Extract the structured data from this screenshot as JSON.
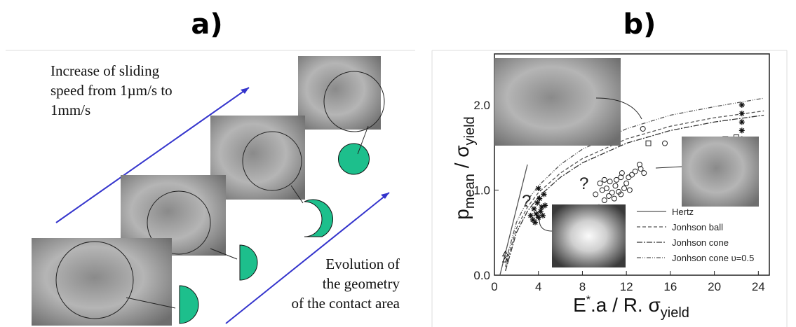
{
  "panel_a": {
    "label": "a)",
    "text_speed": [
      "Increase of sliding",
      "speed from 1µm/s to",
      "1mm/s"
    ],
    "text_geometry": [
      "Evolution of",
      "the geometry",
      "of the contact area"
    ]
  },
  "panel_b": {
    "label": "b)"
  },
  "chart_data": {
    "type": "scatter",
    "x_label": [
      "E",
      "*",
      ".a / R. σ",
      "yield"
    ],
    "y_label": [
      "p",
      "mean",
      " / σ",
      "yield"
    ],
    "annotations": [
      "?",
      "?"
    ],
    "xlim": [
      0,
      25
    ],
    "ylim": [
      0,
      2.6
    ],
    "xticks": [
      0,
      4,
      8,
      12,
      16,
      20,
      24
    ],
    "yticks": [
      {
        "value": 0,
        "label": "0.0"
      },
      {
        "value": 1,
        "label": "1.0"
      },
      {
        "value": 2,
        "label": "2.0"
      }
    ],
    "series": [
      {
        "name": "Hertz",
        "color": "#555555",
        "marker": "line",
        "dash": "1 0",
        "x": [
          0.5,
          3
        ],
        "values": [
          0,
          1.3
        ]
      },
      {
        "name": "Jonhson ball",
        "color": "#555555",
        "marker": "line",
        "dash": "5 3",
        "x": [
          1,
          2,
          3,
          4,
          6,
          8,
          12,
          16,
          20,
          24.5
        ],
        "values": [
          0.1,
          0.55,
          0.8,
          0.97,
          1.2,
          1.37,
          1.6,
          1.75,
          1.85,
          1.93
        ]
      },
      {
        "name": "Jonhson cone",
        "color": "#333333",
        "marker": "line",
        "dash": "8 2 2 2",
        "x": [
          1,
          2,
          3,
          4,
          6,
          8,
          12,
          16,
          20,
          24.5
        ],
        "values": [
          0.05,
          0.5,
          0.75,
          0.92,
          1.15,
          1.32,
          1.55,
          1.7,
          1.8,
          1.88
        ]
      },
      {
        "name": "Jonhson cone υ=0.5",
        "color": "#555555",
        "marker": "line",
        "dash": "6 2 1 2 1 2",
        "x": [
          1,
          2,
          3,
          4,
          6,
          8,
          12,
          16,
          20,
          24.5
        ],
        "values": [
          0.15,
          0.62,
          0.88,
          1.05,
          1.3,
          1.48,
          1.72,
          1.88,
          1.98,
          2.08
        ]
      },
      {
        "color": "#222222",
        "marker": "circle",
        "x": [
          9.2,
          9.5,
          9.8,
          10,
          10.2,
          10.4,
          10.5,
          10.7,
          10.9,
          11,
          11.1,
          11.3,
          11.5,
          11.6,
          11.8,
          12,
          12.2,
          12.5,
          12.8,
          13.2,
          13.5,
          13.6,
          15.5,
          18,
          10,
          11.5,
          12.3,
          9.6,
          13.3
        ],
        "values": [
          0.95,
          0.8,
          1.0,
          0.88,
          1.02,
          0.93,
          1.1,
          0.97,
          0.9,
          1.05,
          1.12,
          0.98,
          1.15,
          1.2,
          1.02,
          1.08,
          1.15,
          1.18,
          1.22,
          1.3,
          1.72,
          1.2,
          1.55,
          1.5,
          1.12,
          0.95,
          1.0,
          1.08,
          1.25
        ]
      },
      {
        "color": "#222222",
        "marker": "square",
        "x": [
          14,
          19.5,
          21,
          22
        ],
        "values": [
          1.55,
          1.55,
          1.6,
          1.62
        ]
      },
      {
        "color": "#111111",
        "marker": "star",
        "x": [
          3.3,
          3.5,
          3.6,
          3.8,
          3.9,
          4.0,
          4.1,
          4.2,
          4.3,
          4.4,
          4.5,
          3.7,
          4.0,
          4.6,
          22.5,
          22.5,
          22.5,
          22.5,
          22.5
        ],
        "values": [
          0.7,
          0.65,
          0.78,
          0.72,
          0.85,
          0.68,
          0.9,
          0.75,
          0.8,
          0.7,
          0.95,
          0.62,
          1.02,
          0.82,
          1.6,
          1.7,
          1.8,
          1.9,
          2.0
        ]
      },
      {
        "color": "#111111",
        "marker": "triangle",
        "x": [
          1,
          1
        ],
        "values": [
          0.18,
          0.25
        ]
      }
    ]
  }
}
